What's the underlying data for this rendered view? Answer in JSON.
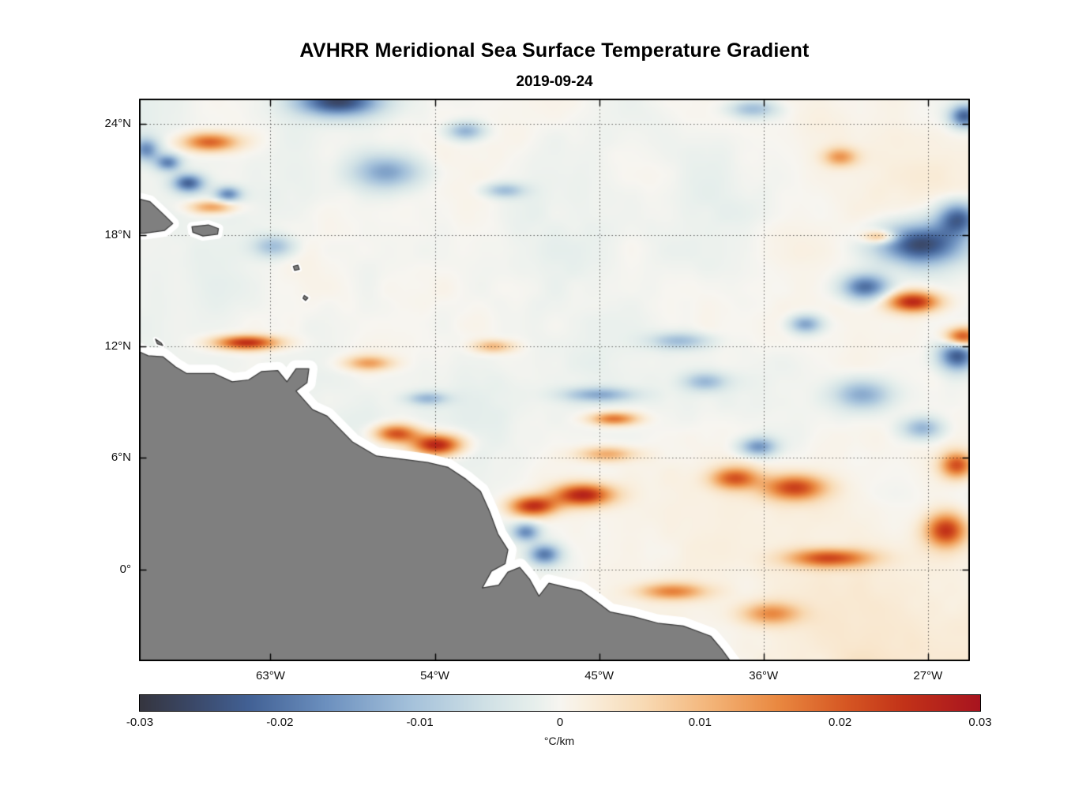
{
  "figure": {
    "title": "AVHRR Meridional Sea Surface Temperature Gradient",
    "subtitle": "2019-09-24"
  },
  "chart_data": {
    "type": "heatmap",
    "title": "AVHRR Meridional Sea Surface Temperature Gradient",
    "date": "2019-09-24",
    "units": "°C/km",
    "x_axis": {
      "range": [
        -70.2,
        -24.7
      ],
      "ticks": [
        {
          "value": -63,
          "label": "63°W"
        },
        {
          "value": -54,
          "label": "54°W"
        },
        {
          "value": -45,
          "label": "45°W"
        },
        {
          "value": -36,
          "label": "36°W"
        },
        {
          "value": -27,
          "label": "27°W"
        }
      ]
    },
    "y_axis": {
      "range": [
        -4.95,
        25.35
      ],
      "ticks": [
        {
          "value": 24,
          "label": "24°N"
        },
        {
          "value": 18,
          "label": "18°N"
        },
        {
          "value": 12,
          "label": "12°N"
        },
        {
          "value": 6,
          "label": "6°N"
        },
        {
          "value": 0,
          "label": "0°"
        }
      ]
    },
    "grid": "dotted",
    "colorbar": {
      "range": [
        -0.03,
        0.03
      ],
      "ticks": [
        -0.03,
        -0.02,
        -0.01,
        0,
        0.01,
        0.02,
        0.03
      ],
      "tick_labels": [
        "-0.03",
        "-0.02",
        "-0.01",
        "0",
        "0.01",
        "0.02",
        "0.03"
      ],
      "label": "°C/km",
      "orientation": "horizontal"
    },
    "colormap": {
      "name": "diverging blue-white-red",
      "stops": [
        {
          "t": 0.0,
          "color": "#35353f"
        },
        {
          "t": 0.06,
          "color": "#3a4766"
        },
        {
          "t": 0.13,
          "color": "#426195"
        },
        {
          "t": 0.22,
          "color": "#6b8fbe"
        },
        {
          "t": 0.32,
          "color": "#a3c0da"
        },
        {
          "t": 0.41,
          "color": "#cfe0e5"
        },
        {
          "t": 0.47,
          "color": "#e7efec"
        },
        {
          "t": 0.5,
          "color": "#f7f5f0"
        },
        {
          "t": 0.53,
          "color": "#f9efdf"
        },
        {
          "t": 0.6,
          "color": "#f8dab4"
        },
        {
          "t": 0.68,
          "color": "#f3b478"
        },
        {
          "t": 0.76,
          "color": "#e98840"
        },
        {
          "t": 0.84,
          "color": "#d65723"
        },
        {
          "t": 0.91,
          "color": "#c23218"
        },
        {
          "t": 1.0,
          "color": "#a8141f"
        }
      ]
    },
    "field": {
      "seed": 11,
      "noise_scale": 0.0048,
      "north_bias": -0.0006,
      "south_bias": 0.0016,
      "octaves": [
        {
          "scale": 60,
          "amp": 1.0
        },
        {
          "scale": 26,
          "amp": 0.55
        },
        {
          "scale": 12,
          "amp": 0.3
        },
        {
          "scale": 6,
          "amp": 0.15
        }
      ],
      "gaussian_features_lon_lat_sigx_sigy_amp": [
        [
          -66.3,
          23.0,
          1.5,
          0.5,
          0.02
        ],
        [
          -66.2,
          19.5,
          1.2,
          0.35,
          0.014
        ],
        [
          -64.3,
          12.2,
          1.7,
          0.38,
          0.026
        ],
        [
          -56.1,
          7.3,
          1.2,
          0.5,
          0.022
        ],
        [
          -53.9,
          6.7,
          1.3,
          0.55,
          0.028
        ],
        [
          -48.6,
          3.4,
          1.3,
          0.55,
          0.025
        ],
        [
          -45.9,
          4.0,
          1.6,
          0.6,
          0.027
        ],
        [
          -44.2,
          8.1,
          1.3,
          0.35,
          0.018
        ],
        [
          -37.6,
          4.9,
          1.3,
          0.6,
          0.019
        ],
        [
          -34.3,
          4.4,
          1.7,
          0.7,
          0.022
        ],
        [
          -32.4,
          0.6,
          2.2,
          0.5,
          0.021
        ],
        [
          -26.0,
          2.1,
          1.1,
          0.9,
          0.024
        ],
        [
          -27.8,
          14.4,
          1.4,
          0.55,
          0.026
        ],
        [
          -25.1,
          12.5,
          0.9,
          0.5,
          0.024
        ],
        [
          -25.4,
          5.6,
          0.9,
          0.7,
          0.021
        ],
        [
          -41.0,
          -1.2,
          1.8,
          0.45,
          0.015
        ],
        [
          -35.6,
          -2.4,
          1.6,
          0.6,
          0.014
        ],
        [
          -57.6,
          11.1,
          1.3,
          0.4,
          0.013
        ],
        [
          -29.6,
          17.9,
          0.9,
          0.35,
          0.015
        ],
        [
          -31.8,
          22.2,
          0.9,
          0.5,
          0.013
        ],
        [
          -50.8,
          12.0,
          1.1,
          0.35,
          0.011
        ],
        [
          -44.6,
          6.2,
          1.6,
          0.4,
          0.012
        ],
        [
          -59.3,
          25.2,
          2.2,
          0.8,
          -0.026
        ],
        [
          -67.5,
          20.8,
          0.85,
          0.5,
          -0.022
        ],
        [
          -68.6,
          21.9,
          0.7,
          0.45,
          -0.018
        ],
        [
          -65.3,
          20.2,
          0.7,
          0.4,
          -0.017
        ],
        [
          -56.6,
          21.4,
          1.8,
          0.9,
          -0.014
        ],
        [
          -27.4,
          17.5,
          2.3,
          1.1,
          -0.026
        ],
        [
          -25.3,
          18.9,
          1.2,
          0.9,
          -0.022
        ],
        [
          -30.4,
          15.2,
          1.3,
          0.7,
          -0.021
        ],
        [
          -25.4,
          11.5,
          1.0,
          0.8,
          -0.023
        ],
        [
          -33.7,
          13.2,
          0.9,
          0.5,
          -0.015
        ],
        [
          -36.3,
          6.6,
          1.0,
          0.5,
          -0.016
        ],
        [
          -49.0,
          2.0,
          0.75,
          0.5,
          -0.017
        ],
        [
          -48.0,
          0.8,
          0.85,
          0.55,
          -0.019
        ],
        [
          -45.0,
          9.4,
          1.9,
          0.4,
          -0.013
        ],
        [
          -62.8,
          17.4,
          1.1,
          0.6,
          -0.011
        ],
        [
          -40.6,
          12.3,
          1.6,
          0.45,
          -0.011
        ],
        [
          -39.2,
          10.1,
          1.2,
          0.5,
          -0.011
        ],
        [
          -30.6,
          9.4,
          1.6,
          0.8,
          -0.013
        ],
        [
          -27.3,
          7.6,
          1.1,
          0.6,
          -0.013
        ],
        [
          -25.0,
          24.4,
          0.8,
          0.6,
          -0.022
        ],
        [
          -36.6,
          24.8,
          1.3,
          0.5,
          -0.012
        ],
        [
          -50.2,
          20.4,
          1.1,
          0.4,
          -0.011
        ],
        [
          -54.4,
          9.2,
          1.1,
          0.35,
          -0.011
        ],
        [
          -52.3,
          23.6,
          1.0,
          0.5,
          -0.013
        ],
        [
          -69.8,
          22.6,
          0.7,
          0.6,
          -0.016
        ]
      ]
    },
    "land": {
      "fill": "#7f7f7f",
      "outline": "#3a3a3a",
      "coast_buffer": "#ffffff",
      "polygons": [
        {
          "name": "south-america",
          "buffer": 11,
          "pts": [
            [
              -70.6,
              11.9
            ],
            [
              -69.7,
              11.5
            ],
            [
              -68.9,
              11.45
            ],
            [
              -68.2,
              10.9
            ],
            [
              -67.6,
              10.55
            ],
            [
              -66.1,
              10.55
            ],
            [
              -65.1,
              10.1
            ],
            [
              -64.2,
              10.2
            ],
            [
              -63.5,
              10.65
            ],
            [
              -62.6,
              10.7
            ],
            [
              -62.1,
              10.1
            ],
            [
              -61.6,
              10.8
            ],
            [
              -60.9,
              10.8
            ],
            [
              -61.0,
              10.05
            ],
            [
              -61.6,
              9.6
            ],
            [
              -60.7,
              8.6
            ],
            [
              -59.9,
              8.25
            ],
            [
              -58.5,
              6.85
            ],
            [
              -57.2,
              6.1
            ],
            [
              -55.9,
              5.95
            ],
            [
              -54.4,
              5.75
            ],
            [
              -53.3,
              5.5
            ],
            [
              -52.3,
              4.85
            ],
            [
              -51.5,
              4.2
            ],
            [
              -51.0,
              3.1
            ],
            [
              -50.55,
              1.9
            ],
            [
              -50.0,
              1.05
            ],
            [
              -50.15,
              0.3
            ],
            [
              -50.9,
              -0.1
            ],
            [
              -51.4,
              -1.0
            ],
            [
              -50.5,
              -0.85
            ],
            [
              -50.0,
              -0.15
            ],
            [
              -49.35,
              0.1
            ],
            [
              -48.8,
              -0.55
            ],
            [
              -48.3,
              -1.45
            ],
            [
              -47.75,
              -0.75
            ],
            [
              -46.9,
              -0.95
            ],
            [
              -46.0,
              -1.15
            ],
            [
              -45.2,
              -1.7
            ],
            [
              -44.4,
              -2.3
            ],
            [
              -43.1,
              -2.55
            ],
            [
              -41.8,
              -2.9
            ],
            [
              -40.4,
              -3.05
            ],
            [
              -38.9,
              -3.6
            ],
            [
              -38.3,
              -4.3
            ],
            [
              -37.7,
              -5.1
            ],
            [
              -37.4,
              -6.5
            ],
            [
              -80.0,
              -6.5
            ],
            [
              -80.0,
              11.9
            ]
          ]
        },
        {
          "name": "hispaniola",
          "buffer": 8,
          "pts": [
            [
              -70.6,
              20.05
            ],
            [
              -69.6,
              19.8
            ],
            [
              -68.9,
              19.15
            ],
            [
              -68.35,
              18.62
            ],
            [
              -68.8,
              18.25
            ],
            [
              -69.9,
              18.1
            ],
            [
              -70.6,
              18.1
            ]
          ]
        },
        {
          "name": "puerto-rico",
          "buffer": 6,
          "pts": [
            [
              -67.3,
              18.45
            ],
            [
              -66.4,
              18.55
            ],
            [
              -65.85,
              18.35
            ],
            [
              -65.9,
              18.05
            ],
            [
              -66.7,
              17.95
            ],
            [
              -67.25,
              18.15
            ]
          ]
        },
        {
          "name": "curacao",
          "buffer": 3,
          "pts": [
            [
              -69.3,
              12.4
            ],
            [
              -69.0,
              12.2
            ],
            [
              -68.9,
              12.05
            ],
            [
              -69.2,
              12.15
            ]
          ]
        },
        {
          "name": "guadeloupe",
          "buffer": 3,
          "pts": [
            [
              -61.75,
              16.32
            ],
            [
              -61.5,
              16.38
            ],
            [
              -61.42,
              16.15
            ],
            [
              -61.68,
              16.1
            ]
          ]
        },
        {
          "name": "martinique",
          "buffer": 3,
          "pts": [
            [
              -61.15,
              14.75
            ],
            [
              -60.95,
              14.62
            ],
            [
              -61.08,
              14.48
            ],
            [
              -61.22,
              14.6
            ]
          ]
        }
      ]
    }
  }
}
